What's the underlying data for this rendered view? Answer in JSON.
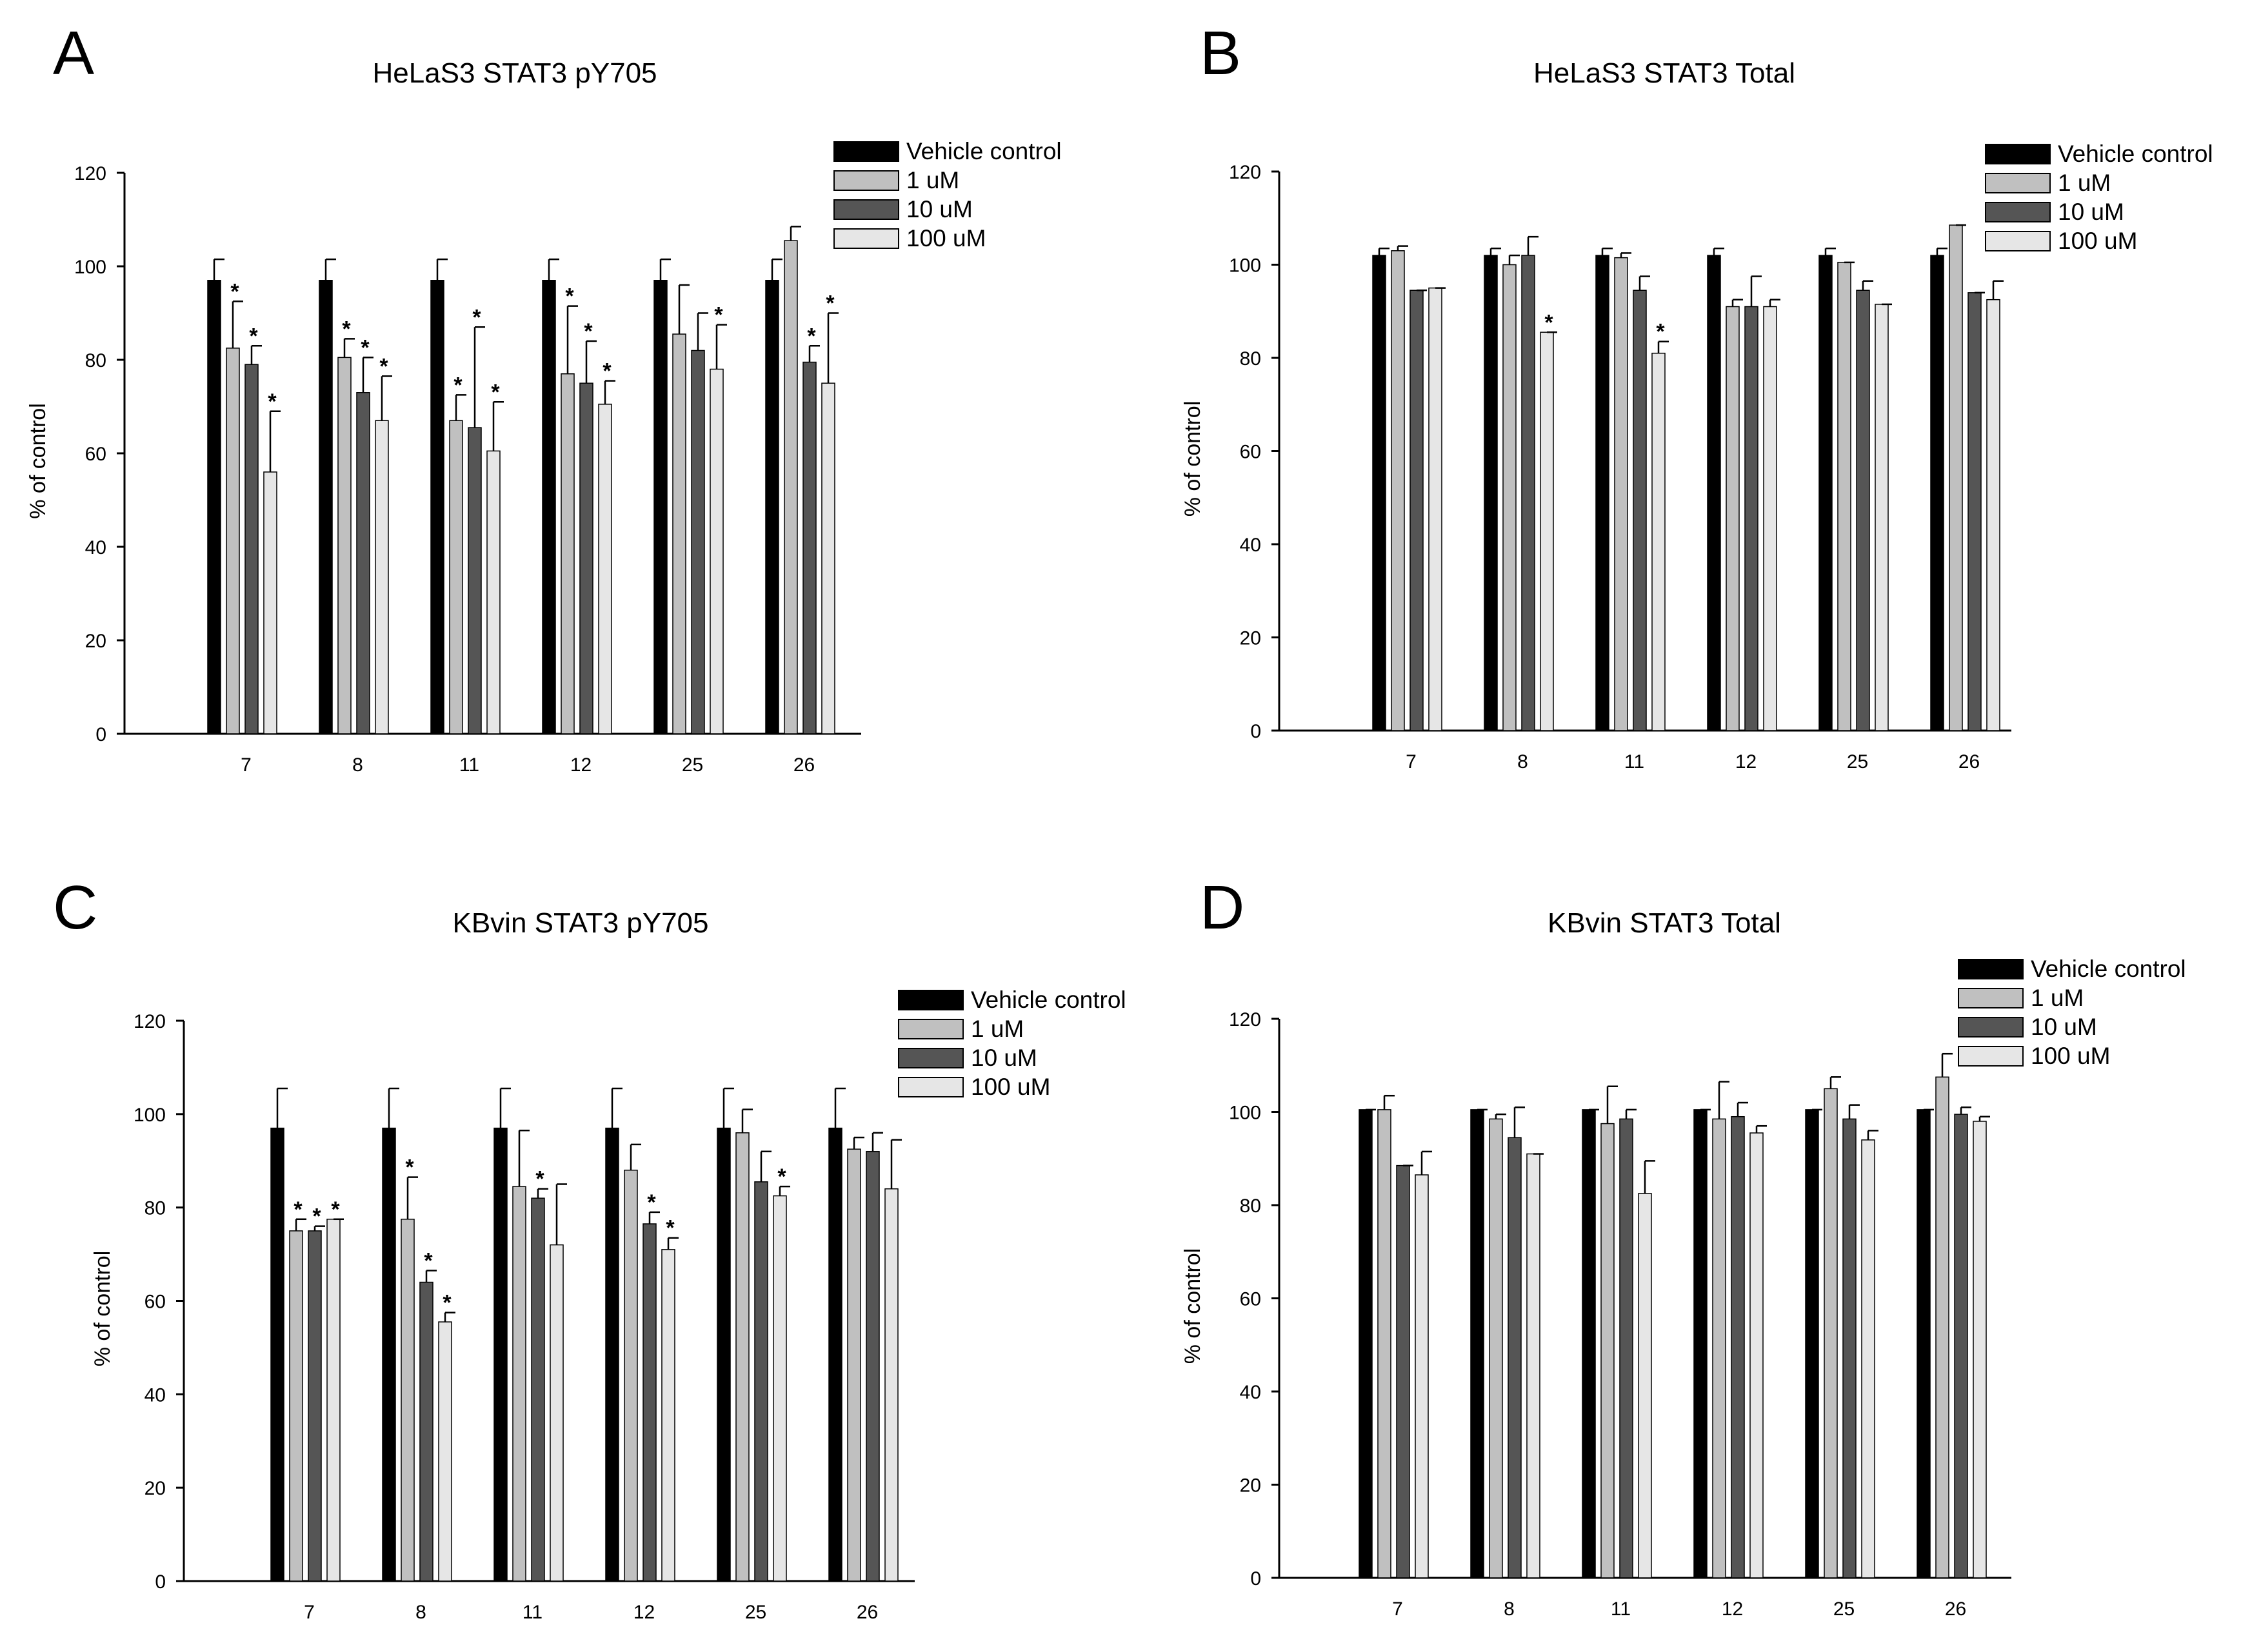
{
  "colors": {
    "vehicle": "#000000",
    "uM1": "#c0c0c0",
    "uM10": "#555555",
    "uM100": "#e6e6e6",
    "axis": "#000000"
  },
  "chart_data": [
    {
      "panel": "A",
      "type": "bar",
      "title": "HeLaS3 STAT3 pY705",
      "xlabel": "",
      "ylabel": "% of control",
      "ylim": [
        0,
        120
      ],
      "yticks": [
        0,
        20,
        40,
        60,
        80,
        100,
        120
      ],
      "categories": [
        "7",
        "8",
        "11",
        "12",
        "25",
        "26"
      ],
      "legend": [
        "Vehicle control",
        "1 uM",
        "10 uM",
        "100 uM"
      ],
      "legend_position": "top-right",
      "series": [
        {
          "name": "Vehicle control",
          "values": [
            97,
            97,
            97,
            97,
            97,
            97
          ],
          "errors": [
            4.5,
            4.5,
            4.5,
            4.5,
            4.5,
            4.5
          ],
          "sig": [
            false,
            false,
            false,
            false,
            false,
            false
          ]
        },
        {
          "name": "1 uM",
          "values": [
            82.5,
            80.5,
            67,
            77,
            85.5,
            105.5
          ],
          "errors": [
            10,
            4,
            5.5,
            14.5,
            10.5,
            3
          ],
          "sig": [
            true,
            true,
            true,
            true,
            false,
            false
          ]
        },
        {
          "name": "10 uM",
          "values": [
            79,
            73,
            65.5,
            75,
            82,
            79.5
          ],
          "errors": [
            4,
            7.5,
            21.5,
            9,
            8,
            3.5
          ],
          "sig": [
            true,
            true,
            true,
            true,
            false,
            true
          ]
        },
        {
          "name": "100 uM",
          "values": [
            56,
            67,
            60.5,
            70.5,
            78,
            75
          ],
          "errors": [
            13,
            9.5,
            10.5,
            5,
            9.5,
            15
          ],
          "sig": [
            true,
            true,
            true,
            true,
            true,
            true
          ]
        }
      ]
    },
    {
      "panel": "B",
      "type": "bar",
      "title": "HeLaS3 STAT3 Total",
      "xlabel": "",
      "ylabel": "% of control",
      "ylim": [
        0,
        120
      ],
      "yticks": [
        0,
        20,
        40,
        60,
        80,
        100,
        120
      ],
      "categories": [
        "7",
        "8",
        "11",
        "12",
        "25",
        "26"
      ],
      "legend": [
        "Vehicle control",
        "1 uM",
        "10 uM",
        "100 uM"
      ],
      "legend_position": "top-right",
      "series": [
        {
          "name": "Vehicle control",
          "values": [
            102,
            102,
            102,
            102,
            102,
            102
          ],
          "errors": [
            1.5,
            1.5,
            1.5,
            1.5,
            1.5,
            1.5
          ],
          "sig": [
            false,
            false,
            false,
            false,
            false,
            false
          ]
        },
        {
          "name": "1 uM",
          "values": [
            103,
            100,
            101.5,
            91,
            100.5,
            108.5
          ],
          "errors": [
            1,
            2,
            1,
            1.5,
            0,
            0
          ],
          "sig": [
            false,
            false,
            false,
            false,
            false,
            false
          ]
        },
        {
          "name": "10 uM",
          "values": [
            94.5,
            102,
            94.5,
            91,
            94.5,
            94
          ],
          "errors": [
            0,
            4,
            3,
            6.5,
            2,
            0
          ],
          "sig": [
            false,
            false,
            false,
            false,
            false,
            false
          ]
        },
        {
          "name": "100 uM",
          "values": [
            95,
            85.5,
            81,
            91,
            91.5,
            92.5
          ],
          "errors": [
            0,
            0,
            2.5,
            1.5,
            0,
            4
          ],
          "sig": [
            false,
            true,
            true,
            false,
            false,
            false
          ]
        }
      ]
    },
    {
      "panel": "C",
      "type": "bar",
      "title": "KBvin STAT3 pY705",
      "xlabel": "",
      "ylabel": "% of control",
      "ylim": [
        0,
        120
      ],
      "yticks": [
        0,
        20,
        40,
        60,
        80,
        100,
        120
      ],
      "categories": [
        "7",
        "8",
        "11",
        "12",
        "25",
        "26"
      ],
      "legend": [
        "Vehicle control",
        "1 uM",
        "10 uM",
        "100 uM"
      ],
      "legend_position": "top-right",
      "series": [
        {
          "name": "Vehicle control",
          "values": [
            97,
            97,
            97,
            97,
            97,
            97
          ],
          "errors": [
            8.5,
            8.5,
            8.5,
            8.5,
            8.5,
            8.5
          ],
          "sig": [
            false,
            false,
            false,
            false,
            false,
            false
          ]
        },
        {
          "name": "1 uM",
          "values": [
            75,
            77.5,
            84.5,
            88,
            96,
            92.5
          ],
          "errors": [
            2.5,
            9,
            12,
            5.5,
            5,
            2.5
          ],
          "sig": [
            true,
            true,
            false,
            false,
            false,
            false
          ]
        },
        {
          "name": "10 uM",
          "values": [
            75,
            64,
            82,
            76.5,
            85.5,
            92
          ],
          "errors": [
            1,
            2.5,
            2,
            2.5,
            6.5,
            4
          ],
          "sig": [
            true,
            true,
            true,
            true,
            false,
            false
          ]
        },
        {
          "name": "100 uM",
          "values": [
            77.5,
            55.5,
            72,
            71,
            82.5,
            84
          ],
          "errors": [
            0,
            2,
            13,
            2.5,
            2,
            10.5
          ],
          "sig": [
            true,
            true,
            false,
            true,
            true,
            false
          ]
        }
      ]
    },
    {
      "panel": "D",
      "type": "bar",
      "title": "KBvin STAT3 Total",
      "xlabel": "",
      "ylabel": "% of control",
      "ylim": [
        0,
        120
      ],
      "yticks": [
        0,
        20,
        40,
        60,
        80,
        100,
        120
      ],
      "categories": [
        "7",
        "8",
        "11",
        "12",
        "25",
        "26"
      ],
      "legend": [
        "Vehicle control",
        "1 uM",
        "10 uM",
        "100 uM"
      ],
      "legend_position": "top-right",
      "series": [
        {
          "name": "Vehicle control",
          "values": [
            100.5,
            100.5,
            100.5,
            100.5,
            100.5,
            100.5
          ],
          "errors": [
            0,
            0,
            0,
            0,
            0,
            0
          ],
          "sig": [
            false,
            false,
            false,
            false,
            false,
            false
          ]
        },
        {
          "name": "1 uM",
          "values": [
            100.5,
            98.5,
            97.5,
            98.5,
            105,
            107.5
          ],
          "errors": [
            3,
            1,
            8,
            8,
            2.5,
            5
          ],
          "sig": [
            false,
            false,
            false,
            false,
            false,
            false
          ]
        },
        {
          "name": "10 uM",
          "values": [
            88.5,
            94.5,
            98.5,
            99,
            98.5,
            99.5
          ],
          "errors": [
            0,
            6.5,
            2,
            3,
            3,
            1.5
          ],
          "sig": [
            false,
            false,
            false,
            false,
            false,
            false
          ]
        },
        {
          "name": "100 uM",
          "values": [
            86.5,
            91,
            82.5,
            95.5,
            94,
            98
          ],
          "errors": [
            5,
            0,
            7,
            1.5,
            2,
            1
          ],
          "sig": [
            false,
            false,
            false,
            false,
            false,
            false
          ]
        }
      ]
    }
  ]
}
